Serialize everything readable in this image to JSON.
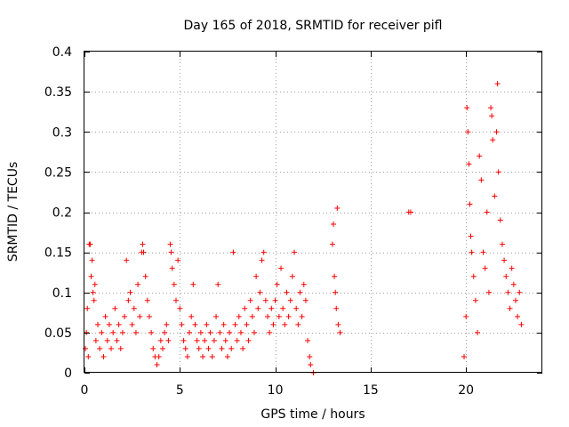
{
  "chart_data": {
    "type": "scatter",
    "title": "Day 165 of 2018, SRMTID for receiver pifl",
    "xlabel": "GPS time / hours",
    "ylabel": "SRMTID / TECUs",
    "xlim": [
      0,
      24
    ],
    "ylim": [
      0,
      0.4
    ],
    "x_ticks": [
      0,
      5,
      10,
      15,
      20
    ],
    "x_tick_labels": [
      "0",
      "5",
      "10",
      "15",
      "20"
    ],
    "y_ticks": [
      0,
      0.05,
      0.1,
      0.15,
      0.2,
      0.25,
      0.3,
      0.35,
      0.4
    ],
    "y_tick_labels": [
      "0",
      "0.05",
      "0.1",
      "0.15",
      "0.2",
      "0.25",
      "0.3",
      "0.35",
      "0.4"
    ],
    "grid": true,
    "marker": "+",
    "color": "#ff0000",
    "series": [
      {
        "name": "SRMTID",
        "points": [
          [
            0.05,
            0.03
          ],
          [
            0.1,
            0.05
          ],
          [
            0.15,
            0.08
          ],
          [
            0.2,
            0.02
          ],
          [
            0.25,
            0.16
          ],
          [
            0.3,
            0.16
          ],
          [
            0.35,
            0.12
          ],
          [
            0.4,
            0.14
          ],
          [
            0.45,
            0.1
          ],
          [
            0.5,
            0.09
          ],
          [
            0.55,
            0.11
          ],
          [
            0.6,
            0.04
          ],
          [
            0.7,
            0.06
          ],
          [
            0.8,
            0.03
          ],
          [
            0.9,
            0.05
          ],
          [
            1.0,
            0.02
          ],
          [
            1.1,
            0.07
          ],
          [
            1.2,
            0.04
          ],
          [
            1.3,
            0.06
          ],
          [
            1.4,
            0.03
          ],
          [
            1.5,
            0.05
          ],
          [
            1.6,
            0.08
          ],
          [
            1.7,
            0.04
          ],
          [
            1.8,
            0.06
          ],
          [
            1.9,
            0.03
          ],
          [
            2.0,
            0.05
          ],
          [
            2.1,
            0.07
          ],
          [
            2.2,
            0.14
          ],
          [
            2.3,
            0.09
          ],
          [
            2.4,
            0.1
          ],
          [
            2.5,
            0.06
          ],
          [
            2.6,
            0.08
          ],
          [
            2.7,
            0.05
          ],
          [
            2.8,
            0.11
          ],
          [
            2.9,
            0.07
          ],
          [
            3.0,
            0.15
          ],
          [
            3.05,
            0.16
          ],
          [
            3.1,
            0.15
          ],
          [
            3.2,
            0.12
          ],
          [
            3.3,
            0.09
          ],
          [
            3.4,
            0.07
          ],
          [
            3.5,
            0.05
          ],
          [
            3.6,
            0.03
          ],
          [
            3.7,
            0.02
          ],
          [
            3.8,
            0.01
          ],
          [
            3.9,
            0.02
          ],
          [
            4.0,
            0.04
          ],
          [
            4.1,
            0.03
          ],
          [
            4.2,
            0.05
          ],
          [
            4.3,
            0.06
          ],
          [
            4.4,
            0.04
          ],
          [
            4.5,
            0.16
          ],
          [
            4.55,
            0.15
          ],
          [
            4.6,
            0.13
          ],
          [
            4.7,
            0.11
          ],
          [
            4.8,
            0.09
          ],
          [
            4.9,
            0.14
          ],
          [
            5.0,
            0.08
          ],
          [
            5.1,
            0.06
          ],
          [
            5.2,
            0.04
          ],
          [
            5.3,
            0.03
          ],
          [
            5.4,
            0.02
          ],
          [
            5.5,
            0.05
          ],
          [
            5.6,
            0.07
          ],
          [
            5.7,
            0.11
          ],
          [
            5.8,
            0.06
          ],
          [
            5.9,
            0.04
          ],
          [
            6.0,
            0.03
          ],
          [
            6.1,
            0.05
          ],
          [
            6.2,
            0.02
          ],
          [
            6.3,
            0.04
          ],
          [
            6.4,
            0.06
          ],
          [
            6.5,
            0.03
          ],
          [
            6.6,
            0.05
          ],
          [
            6.7,
            0.02
          ],
          [
            6.8,
            0.04
          ],
          [
            6.9,
            0.07
          ],
          [
            7.0,
            0.11
          ],
          [
            7.1,
            0.05
          ],
          [
            7.2,
            0.03
          ],
          [
            7.3,
            0.06
          ],
          [
            7.4,
            0.04
          ],
          [
            7.5,
            0.02
          ],
          [
            7.6,
            0.05
          ],
          [
            7.7,
            0.03
          ],
          [
            7.8,
            0.15
          ],
          [
            7.9,
            0.06
          ],
          [
            8.0,
            0.04
          ],
          [
            8.1,
            0.07
          ],
          [
            8.2,
            0.05
          ],
          [
            8.3,
            0.03
          ],
          [
            8.4,
            0.08
          ],
          [
            8.5,
            0.06
          ],
          [
            8.6,
            0.04
          ],
          [
            8.7,
            0.09
          ],
          [
            8.8,
            0.07
          ],
          [
            8.9,
            0.05
          ],
          [
            9.0,
            0.12
          ],
          [
            9.1,
            0.08
          ],
          [
            9.2,
            0.1
          ],
          [
            9.3,
            0.14
          ],
          [
            9.4,
            0.15
          ],
          [
            9.5,
            0.09
          ],
          [
            9.6,
            0.07
          ],
          [
            9.7,
            0.05
          ],
          [
            9.8,
            0.08
          ],
          [
            9.9,
            0.06
          ],
          [
            10.0,
            0.09
          ],
          [
            10.1,
            0.11
          ],
          [
            10.2,
            0.07
          ],
          [
            10.3,
            0.13
          ],
          [
            10.4,
            0.08
          ],
          [
            10.5,
            0.06
          ],
          [
            10.6,
            0.1
          ],
          [
            10.7,
            0.07
          ],
          [
            10.8,
            0.09
          ],
          [
            10.9,
            0.12
          ],
          [
            11.0,
            0.15
          ],
          [
            11.1,
            0.08
          ],
          [
            11.2,
            0.06
          ],
          [
            11.3,
            0.1
          ],
          [
            11.4,
            0.07
          ],
          [
            11.5,
            0.11
          ],
          [
            11.6,
            0.09
          ],
          [
            11.7,
            0.04
          ],
          [
            11.8,
            0.02
          ],
          [
            11.85,
            0.01
          ],
          [
            12.0,
            0.0
          ],
          [
            13.0,
            0.16
          ],
          [
            13.05,
            0.185
          ],
          [
            13.1,
            0.12
          ],
          [
            13.15,
            0.1
          ],
          [
            13.2,
            0.08
          ],
          [
            13.25,
            0.205
          ],
          [
            13.3,
            0.06
          ],
          [
            13.4,
            0.05
          ],
          [
            17.0,
            0.2
          ],
          [
            17.1,
            0.2
          ],
          [
            19.9,
            0.02
          ],
          [
            20.0,
            0.07
          ],
          [
            20.05,
            0.33
          ],
          [
            20.1,
            0.3
          ],
          [
            20.15,
            0.26
          ],
          [
            20.2,
            0.21
          ],
          [
            20.25,
            0.17
          ],
          [
            20.3,
            0.15
          ],
          [
            20.4,
            0.12
          ],
          [
            20.5,
            0.09
          ],
          [
            20.6,
            0.05
          ],
          [
            20.7,
            0.27
          ],
          [
            20.8,
            0.24
          ],
          [
            20.9,
            0.15
          ],
          [
            21.0,
            0.13
          ],
          [
            21.1,
            0.2
          ],
          [
            21.2,
            0.1
          ],
          [
            21.3,
            0.33
          ],
          [
            21.35,
            0.32
          ],
          [
            21.4,
            0.29
          ],
          [
            21.5,
            0.22
          ],
          [
            21.6,
            0.3
          ],
          [
            21.65,
            0.36
          ],
          [
            21.7,
            0.25
          ],
          [
            21.8,
            0.19
          ],
          [
            21.9,
            0.16
          ],
          [
            22.0,
            0.14
          ],
          [
            22.1,
            0.12
          ],
          [
            22.2,
            0.1
          ],
          [
            22.3,
            0.08
          ],
          [
            22.4,
            0.13
          ],
          [
            22.5,
            0.11
          ],
          [
            22.6,
            0.09
          ],
          [
            22.7,
            0.07
          ],
          [
            22.8,
            0.1
          ],
          [
            22.9,
            0.06
          ]
        ]
      }
    ]
  }
}
